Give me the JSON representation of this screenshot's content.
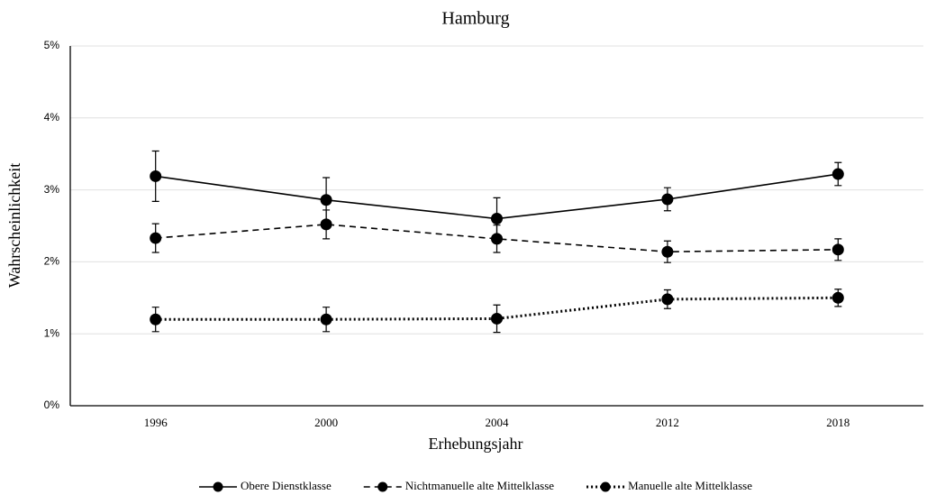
{
  "chart_data": {
    "type": "line",
    "title": "Hamburg",
    "x_label": "Erhebungsjahr",
    "y_label": "Wahrscheinlichkeit",
    "categories": [
      "1996",
      "2000",
      "2004",
      "2012",
      "2018"
    ],
    "ylim": [
      0,
      5
    ],
    "yticks": [
      {
        "value": 0,
        "label": "0%"
      },
      {
        "value": 1,
        "label": "1%"
      },
      {
        "value": 2,
        "label": "2%"
      },
      {
        "value": 3,
        "label": "3%"
      },
      {
        "value": 4,
        "label": "4%"
      },
      {
        "value": 5,
        "label": "5%"
      }
    ],
    "grid": true,
    "legend": "bottom",
    "series": [
      {
        "name": "Obere Dienstklasse",
        "color": "#000000",
        "dash": "solid",
        "values": [
          3.19,
          2.86,
          2.6,
          2.87,
          3.22
        ],
        "errors": [
          0.35,
          0.31,
          0.29,
          0.16,
          0.16
        ]
      },
      {
        "name": "Nichtmanuelle alte Mittelklasse",
        "color": "#000000",
        "dash": "dashed",
        "values": [
          2.33,
          2.52,
          2.32,
          2.14,
          2.17
        ],
        "errors": [
          0.2,
          0.2,
          0.19,
          0.15,
          0.15
        ]
      },
      {
        "name": "Manuelle alte Mittelklasse",
        "color": "#000000",
        "dash": "dotted",
        "values": [
          1.2,
          1.2,
          1.21,
          1.48,
          1.5
        ],
        "errors": [
          0.17,
          0.17,
          0.19,
          0.13,
          0.12
        ]
      }
    ]
  }
}
